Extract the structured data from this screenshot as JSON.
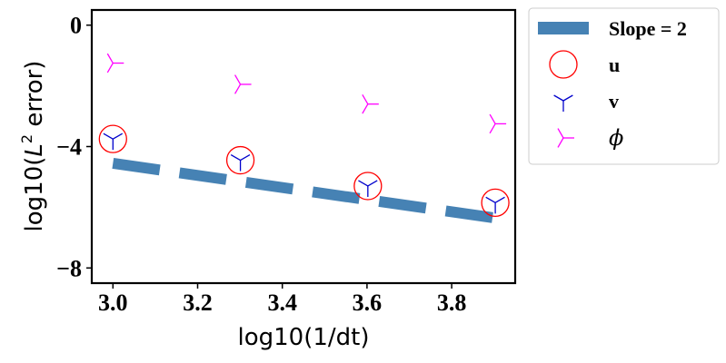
{
  "chart_data": {
    "type": "scatter",
    "xlabel": "log10(1/dt)",
    "ylabel_prefix": "log10(",
    "ylabel_L": "L",
    "ylabel_sup": "2",
    "ylabel_suffix": " error)",
    "xlim": [
      2.95,
      3.95
    ],
    "ylim": [
      -8.5,
      0.5
    ],
    "xticks": [
      3.0,
      3.2,
      3.4,
      3.6,
      3.8
    ],
    "xtick_labels": [
      "3.0",
      "3.2",
      "3.4",
      "3.6",
      "3.8"
    ],
    "yticks": [
      0,
      -4,
      -8
    ],
    "ytick_labels": [
      "0",
      "−4",
      "−8"
    ],
    "grid": false,
    "legend_position": "outside-right-top",
    "series": [
      {
        "name": "Slope = 2",
        "kind": "dashed-line",
        "color": "#4682B4",
        "x": [
          3.0,
          3.903
        ],
        "y": [
          -4.55,
          -6.356
        ]
      },
      {
        "name": "u",
        "kind": "open-circle",
        "color": "#ff0000",
        "x": [
          3.0,
          3.301,
          3.602,
          3.903
        ],
        "y": [
          -3.75,
          -4.45,
          -5.3,
          -5.85
        ]
      },
      {
        "name": "v",
        "kind": "tri-down",
        "color": "#0000cc",
        "x": [
          3.0,
          3.301,
          3.602,
          3.903
        ],
        "y": [
          -3.75,
          -4.45,
          -5.3,
          -5.85
        ]
      },
      {
        "name": "ϕ",
        "kind": "tri-right",
        "color": "#ff00ff",
        "x": [
          3.0,
          3.301,
          3.602,
          3.903
        ],
        "y": [
          -1.25,
          -1.95,
          -2.6,
          -3.25
        ]
      }
    ]
  }
}
